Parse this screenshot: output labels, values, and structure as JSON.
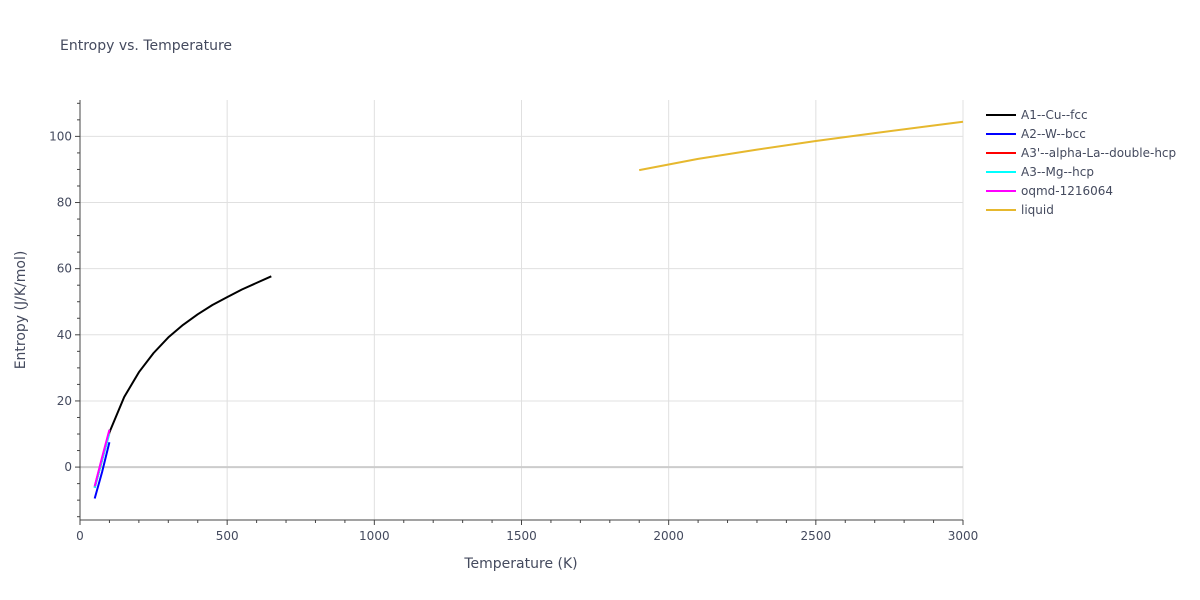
{
  "chart_data": {
    "type": "line",
    "title": "Entropy vs. Temperature",
    "xlabel": "Temperature (K)",
    "ylabel": "Entropy (J/K/mol)",
    "xlim": [
      0,
      3000
    ],
    "ylim": [
      -16,
      111
    ],
    "x_ticks": [
      0,
      500,
      1000,
      1500,
      2000,
      2500,
      3000
    ],
    "y_ticks": [
      0,
      20,
      40,
      60,
      80,
      100
    ],
    "grid": true,
    "legend_position": "right",
    "series": [
      {
        "name": "A1--Cu--fcc",
        "color": "#000000",
        "x": [
          50,
          100,
          150,
          200,
          250,
          300,
          350,
          400,
          450,
          500,
          550,
          600,
          650
        ],
        "y": [
          -6.2,
          10.5,
          21.2,
          28.7,
          34.5,
          39.2,
          43.0,
          46.2,
          49.0,
          51.4,
          53.7,
          55.7,
          57.7
        ]
      },
      {
        "name": "A2--W--bcc",
        "color": "#0000ff",
        "x": [
          50,
          75,
          100
        ],
        "y": [
          -9.5,
          -1.5,
          7.5
        ]
      },
      {
        "name": "A3'--alpha-La--double-hcp",
        "color": "#ff0000",
        "x": [
          50,
          75,
          100
        ],
        "y": [
          -6.0,
          2.5,
          10.5
        ]
      },
      {
        "name": "A3--Mg--hcp",
        "color": "#00ffff",
        "x": [
          50,
          75,
          100
        ],
        "y": [
          -6.3,
          2.2,
          10.2
        ]
      },
      {
        "name": "oqmd-1216064",
        "color": "#ff00ff",
        "x": [
          50,
          75,
          100
        ],
        "y": [
          -5.8,
          3.0,
          11.3
        ]
      },
      {
        "name": "liquid",
        "color": "#e6b82e",
        "x": [
          1900,
          2100,
          2300,
          2500,
          2700,
          2900,
          3000
        ],
        "y": [
          89.8,
          93.2,
          96.0,
          98.6,
          101.0,
          103.3,
          104.4
        ]
      }
    ]
  }
}
